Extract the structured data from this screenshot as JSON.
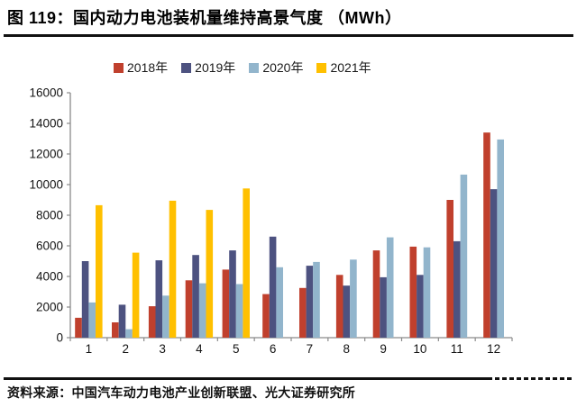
{
  "header": {
    "title": "图 119：国内动力电池装机量维持高景气度 （MWh）"
  },
  "chart_data": {
    "type": "bar",
    "title": "国内动力电池装机量维持高景气度",
    "unit": "MWh",
    "xlabel": "",
    "ylabel": "",
    "categories": [
      "1",
      "2",
      "3",
      "4",
      "5",
      "6",
      "7",
      "8",
      "9",
      "10",
      "11",
      "12"
    ],
    "series": [
      {
        "name": "2018年",
        "color": "#C0402D",
        "values": [
          1300,
          1000,
          2050,
          3750,
          4450,
          2850,
          3250,
          4100,
          5700,
          5950,
          9000,
          13400
        ]
      },
      {
        "name": "2019年",
        "color": "#4D5280",
        "values": [
          5000,
          2150,
          5050,
          5400,
          5700,
          6600,
          4700,
          3400,
          3950,
          4100,
          6300,
          9700
        ]
      },
      {
        "name": "2020年",
        "color": "#92B5CC",
        "values": [
          2300,
          550,
          2750,
          3550,
          3500,
          4600,
          4950,
          5100,
          6550,
          5900,
          10650,
          12950
        ]
      },
      {
        "name": "2021年",
        "color": "#FFC000",
        "values": [
          8650,
          5550,
          8950,
          8350,
          9750,
          null,
          null,
          null,
          null,
          null,
          null,
          null
        ]
      }
    ],
    "ylim": [
      0,
      16000
    ],
    "ytick_step": 2000,
    "grid": false,
    "legend_position": "top"
  },
  "footer": {
    "source": "资料来源：中国汽车动力电池产业创新联盟、光大证券研究所"
  },
  "colors": {
    "axis": "#8a8a8a",
    "text": "#141414",
    "rule": "#111111"
  }
}
